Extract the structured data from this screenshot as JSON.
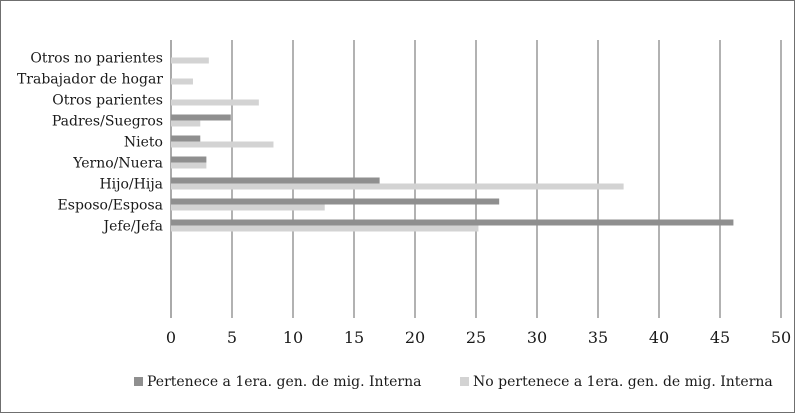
{
  "chart_data": {
    "type": "bar",
    "orientation": "horizontal",
    "categories": [
      "Otros no parientes",
      "Trabajador de hogar",
      "Otros parientes",
      "Padres/Suegros",
      "Nieto",
      "Yerno/Nuera",
      "Hijo/Hija",
      "Esposo/Esposa",
      "Jefe/Jefa"
    ],
    "series": [
      {
        "name": "Pertenece a 1era. gen. de mig. Interna",
        "color": "#8f8f8f",
        "values": [
          0,
          0,
          0,
          4.9,
          2.4,
          2.9,
          17.1,
          26.9,
          46.1
        ]
      },
      {
        "name": "No pertenece a 1era. gen. de mig. Interna",
        "color": "#d3d3d3",
        "values": [
          3.1,
          1.8,
          7.2,
          2.4,
          8.4,
          2.9,
          37.1,
          12.6,
          25.2
        ]
      }
    ],
    "xlim": [
      0,
      50
    ],
    "xticks": [
      "0",
      "5",
      "10",
      "15",
      "20",
      "25",
      "30",
      "35",
      "40",
      "45",
      "50"
    ],
    "grid": "vertical",
    "legend": "bottom"
  }
}
